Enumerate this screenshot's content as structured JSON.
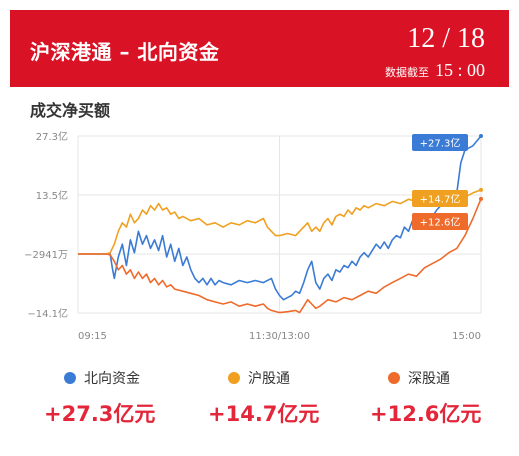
{
  "header": {
    "title": "沪深港通 – 北向资金",
    "date": "12 / 18",
    "data_cutoff_label": "数据截至",
    "data_cutoff_time": "15 : 00",
    "bg_color": "#d91225"
  },
  "section_title": "成交净买额",
  "legend": [
    {
      "name": "北向资金",
      "color": "#3a7bd5"
    },
    {
      "name": "沪股通",
      "color": "#f0a020"
    },
    {
      "name": "深股通",
      "color": "#ef6b2b"
    }
  ],
  "totals": [
    {
      "text": "+27.3亿元",
      "color": "#e3263a"
    },
    {
      "text": "+14.7亿元",
      "color": "#e3263a"
    },
    {
      "text": "+12.6亿元",
      "color": "#e3263a"
    }
  ],
  "chart_data": {
    "type": "line",
    "y_unit": "亿",
    "ylim": [
      -14.1,
      27.3
    ],
    "y_ticks": [
      {
        "value": 27.3,
        "label": "27.3亿"
      },
      {
        "value": 13.5,
        "label": "13.5亿"
      },
      {
        "value": -0.2941,
        "label": "−2941万"
      },
      {
        "value": -14.1,
        "label": "−14.1亿"
      }
    ],
    "x_ticks": [
      {
        "t": 0,
        "label": "09:15"
      },
      {
        "t": 0.5,
        "label": "11:30/13:00"
      },
      {
        "t": 1,
        "label": "15:00"
      }
    ],
    "grid": true,
    "series": [
      {
        "name": "北向资金",
        "color": "#3a7bd5",
        "end_label": "+27.3亿",
        "points": [
          [
            0,
            -0.3
          ],
          [
            0.07,
            -0.3
          ],
          [
            0.08,
            -0.3
          ],
          [
            0.085,
            -3.5
          ],
          [
            0.09,
            -6
          ],
          [
            0.1,
            -1
          ],
          [
            0.11,
            2
          ],
          [
            0.12,
            -3
          ],
          [
            0.13,
            3
          ],
          [
            0.14,
            0
          ],
          [
            0.15,
            5
          ],
          [
            0.16,
            2
          ],
          [
            0.17,
            4
          ],
          [
            0.18,
            1
          ],
          [
            0.19,
            3
          ],
          [
            0.2,
            0.5
          ],
          [
            0.21,
            4
          ],
          [
            0.22,
            -1
          ],
          [
            0.23,
            2
          ],
          [
            0.24,
            -2
          ],
          [
            0.25,
            1
          ],
          [
            0.26,
            -3
          ],
          [
            0.27,
            -1
          ],
          [
            0.28,
            -4
          ],
          [
            0.29,
            -6
          ],
          [
            0.3,
            -7
          ],
          [
            0.31,
            -6
          ],
          [
            0.32,
            -7.5
          ],
          [
            0.33,
            -6
          ],
          [
            0.34,
            -7.5
          ],
          [
            0.35,
            -6.5
          ],
          [
            0.36,
            -7
          ],
          [
            0.38,
            -7.5
          ],
          [
            0.4,
            -6.5
          ],
          [
            0.42,
            -7
          ],
          [
            0.44,
            -6.5
          ],
          [
            0.46,
            -7
          ],
          [
            0.48,
            -6
          ],
          [
            0.49,
            -8.5
          ],
          [
            0.5,
            -10
          ],
          [
            0.51,
            -11
          ],
          [
            0.52,
            -10.5
          ],
          [
            0.53,
            -10
          ],
          [
            0.54,
            -9
          ],
          [
            0.55,
            -9.5
          ],
          [
            0.56,
            -7
          ],
          [
            0.57,
            -4
          ],
          [
            0.58,
            -2
          ],
          [
            0.59,
            -7
          ],
          [
            0.6,
            -8.5
          ],
          [
            0.61,
            -6
          ],
          [
            0.62,
            -5
          ],
          [
            0.63,
            -6.5
          ],
          [
            0.64,
            -4
          ],
          [
            0.65,
            -4.5
          ],
          [
            0.66,
            -3
          ],
          [
            0.67,
            -3.5
          ],
          [
            0.68,
            -2
          ],
          [
            0.69,
            -3
          ],
          [
            0.7,
            -1
          ],
          [
            0.71,
            0
          ],
          [
            0.72,
            -1
          ],
          [
            0.73,
            0.5
          ],
          [
            0.74,
            2
          ],
          [
            0.75,
            1
          ],
          [
            0.76,
            2.5
          ],
          [
            0.77,
            1
          ],
          [
            0.78,
            3
          ],
          [
            0.79,
            4
          ],
          [
            0.8,
            3.5
          ],
          [
            0.81,
            6
          ],
          [
            0.82,
            5
          ],
          [
            0.83,
            7.5
          ],
          [
            0.84,
            7
          ],
          [
            0.85,
            8.5
          ],
          [
            0.86,
            8
          ],
          [
            0.87,
            9
          ],
          [
            0.88,
            8.5
          ],
          [
            0.89,
            10
          ],
          [
            0.9,
            11
          ],
          [
            0.91,
            12
          ],
          [
            0.92,
            13
          ],
          [
            0.93,
            12.5
          ],
          [
            0.94,
            14
          ],
          [
            0.95,
            21
          ],
          [
            0.96,
            24
          ],
          [
            0.98,
            25
          ],
          [
            1.0,
            27.3
          ]
        ]
      },
      {
        "name": "沪股通",
        "color": "#f0a020",
        "end_label": "+14.7亿",
        "points": [
          [
            0,
            -0.3
          ],
          [
            0.07,
            -0.3
          ],
          [
            0.08,
            0
          ],
          [
            0.09,
            2
          ],
          [
            0.1,
            5
          ],
          [
            0.11,
            7
          ],
          [
            0.12,
            6
          ],
          [
            0.13,
            9
          ],
          [
            0.14,
            7
          ],
          [
            0.15,
            8
          ],
          [
            0.16,
            10
          ],
          [
            0.17,
            9
          ],
          [
            0.18,
            11
          ],
          [
            0.19,
            10
          ],
          [
            0.2,
            11.5
          ],
          [
            0.21,
            10
          ],
          [
            0.22,
            10.5
          ],
          [
            0.23,
            9
          ],
          [
            0.24,
            9.5
          ],
          [
            0.25,
            8
          ],
          [
            0.26,
            8.5
          ],
          [
            0.28,
            7.5
          ],
          [
            0.3,
            8
          ],
          [
            0.32,
            6.5
          ],
          [
            0.34,
            7
          ],
          [
            0.36,
            6
          ],
          [
            0.38,
            7
          ],
          [
            0.4,
            6.5
          ],
          [
            0.42,
            7.5
          ],
          [
            0.44,
            7
          ],
          [
            0.46,
            8
          ],
          [
            0.47,
            6
          ],
          [
            0.48,
            5
          ],
          [
            0.49,
            4
          ],
          [
            0.5,
            4
          ],
          [
            0.52,
            4.5
          ],
          [
            0.54,
            4
          ],
          [
            0.55,
            5
          ],
          [
            0.56,
            6
          ],
          [
            0.57,
            7
          ],
          [
            0.58,
            5
          ],
          [
            0.59,
            6
          ],
          [
            0.6,
            5
          ],
          [
            0.61,
            7
          ],
          [
            0.62,
            8
          ],
          [
            0.63,
            6.5
          ],
          [
            0.64,
            8.5
          ],
          [
            0.65,
            9
          ],
          [
            0.66,
            8.5
          ],
          [
            0.67,
            10
          ],
          [
            0.68,
            9
          ],
          [
            0.69,
            10.5
          ],
          [
            0.7,
            10
          ],
          [
            0.71,
            11
          ],
          [
            0.72,
            10.5
          ],
          [
            0.74,
            11.5
          ],
          [
            0.76,
            11
          ],
          [
            0.78,
            12
          ],
          [
            0.8,
            11.5
          ],
          [
            0.82,
            12.5
          ],
          [
            0.84,
            12
          ],
          [
            0.86,
            13
          ],
          [
            0.88,
            12.5
          ],
          [
            0.9,
            13.5
          ],
          [
            0.92,
            13
          ],
          [
            0.94,
            13.5
          ],
          [
            0.96,
            13
          ],
          [
            0.98,
            14
          ],
          [
            1.0,
            14.7
          ]
        ]
      },
      {
        "name": "深股通",
        "color": "#ef6b2b",
        "end_label": "+12.6亿",
        "points": [
          [
            0,
            -0.3
          ],
          [
            0.07,
            -0.3
          ],
          [
            0.08,
            -0.5
          ],
          [
            0.09,
            -2
          ],
          [
            0.1,
            -4
          ],
          [
            0.11,
            -3
          ],
          [
            0.12,
            -5
          ],
          [
            0.13,
            -4
          ],
          [
            0.14,
            -6
          ],
          [
            0.15,
            -4.5
          ],
          [
            0.16,
            -6
          ],
          [
            0.17,
            -5
          ],
          [
            0.18,
            -7
          ],
          [
            0.19,
            -6
          ],
          [
            0.2,
            -7.5
          ],
          [
            0.21,
            -6.5
          ],
          [
            0.22,
            -8
          ],
          [
            0.23,
            -7.5
          ],
          [
            0.24,
            -8.5
          ],
          [
            0.26,
            -9
          ],
          [
            0.28,
            -9.5
          ],
          [
            0.3,
            -10
          ],
          [
            0.32,
            -11
          ],
          [
            0.34,
            -11.5
          ],
          [
            0.36,
            -12
          ],
          [
            0.38,
            -11.5
          ],
          [
            0.4,
            -12.5
          ],
          [
            0.42,
            -12
          ],
          [
            0.44,
            -12.5
          ],
          [
            0.46,
            -12
          ],
          [
            0.47,
            -13
          ],
          [
            0.48,
            -13.5
          ],
          [
            0.5,
            -14
          ],
          [
            0.52,
            -13.8
          ],
          [
            0.54,
            -13.5
          ],
          [
            0.55,
            -14
          ],
          [
            0.56,
            -12.5
          ],
          [
            0.57,
            -11
          ],
          [
            0.58,
            -12
          ],
          [
            0.59,
            -13
          ],
          [
            0.6,
            -12.5
          ],
          [
            0.62,
            -11
          ],
          [
            0.64,
            -11.5
          ],
          [
            0.66,
            -10.5
          ],
          [
            0.68,
            -11
          ],
          [
            0.7,
            -10
          ],
          [
            0.72,
            -9
          ],
          [
            0.74,
            -9.5
          ],
          [
            0.76,
            -8
          ],
          [
            0.78,
            -7
          ],
          [
            0.8,
            -6
          ],
          [
            0.82,
            -5
          ],
          [
            0.84,
            -5.5
          ],
          [
            0.86,
            -3.5
          ],
          [
            0.88,
            -2.5
          ],
          [
            0.9,
            -1.5
          ],
          [
            0.92,
            0
          ],
          [
            0.94,
            1
          ],
          [
            0.96,
            4
          ],
          [
            0.98,
            8
          ],
          [
            1.0,
            12.6
          ]
        ]
      }
    ]
  }
}
